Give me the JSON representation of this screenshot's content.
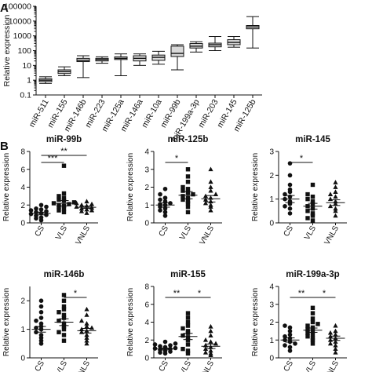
{
  "panels": {
    "a_label": "A",
    "b_label": "B"
  },
  "chart_data": [
    {
      "type": "box",
      "panel": "A",
      "title": "",
      "ylabel": "Relative expression",
      "yscale": "log",
      "ylim": [
        0.1,
        100000
      ],
      "yticks": [
        0.1,
        1,
        10,
        100,
        1000,
        10000,
        100000
      ],
      "ytick_labels": [
        "0.1",
        "1",
        "10",
        "100",
        "1000",
        "10000",
        "100000"
      ],
      "categories": [
        "miR-511",
        "miR-155",
        "miR-146b",
        "miR-223",
        "miR-125a",
        "miR-146a",
        "miR-10a",
        "miR-99b",
        "miR-199a-3p",
        "miR-203",
        "miR-145",
        "miR-125b"
      ],
      "boxes": [
        {
          "min": 0.6,
          "q1": 0.8,
          "median": 1.0,
          "q3": 1.25,
          "max": 1.7
        },
        {
          "min": 2.0,
          "q1": 2.8,
          "median": 3.8,
          "q3": 5,
          "max": 8
        },
        {
          "min": 1.5,
          "q1": 18,
          "median": 22,
          "q3": 30,
          "max": 45
        },
        {
          "min": 14,
          "q1": 20,
          "median": 25,
          "q3": 30,
          "max": 38
        },
        {
          "min": 2,
          "q1": 25,
          "median": 30,
          "q3": 38,
          "max": 60
        },
        {
          "min": 10,
          "q1": 20,
          "median": 30,
          "q3": 45,
          "max": 60
        },
        {
          "min": 12,
          "q1": 22,
          "median": 35,
          "q3": 50,
          "max": 90
        },
        {
          "min": 5,
          "q1": 40,
          "median": 65,
          "q3": 200,
          "max": 250
        },
        {
          "min": 80,
          "q1": 150,
          "median": 200,
          "q3": 300,
          "max": 400
        },
        {
          "min": 100,
          "q1": 180,
          "median": 250,
          "q3": 320,
          "max": 900
        },
        {
          "min": 170,
          "q1": 250,
          "median": 360,
          "q3": 550,
          "max": 900
        },
        {
          "min": 150,
          "q1": 3000,
          "median": 4000,
          "q3": 5000,
          "max": 20000
        }
      ]
    },
    {
      "type": "scatter",
      "panel": "B",
      "title": "miR-99b",
      "ylabel": "Relative expression",
      "categories": [
        "CS",
        "VLS",
        "VNLS"
      ],
      "ylim": [
        0,
        8
      ],
      "yticks": [
        0,
        2,
        4,
        6,
        8
      ],
      "ytick_labels": [
        "0",
        "2",
        "4",
        "6",
        "8"
      ],
      "markers": [
        "circle",
        "square",
        "triangle"
      ],
      "groups": [
        [
          0.3,
          0.5,
          0.6,
          0.8,
          0.9,
          1.0,
          1.1,
          1.2,
          1.3,
          1.4,
          1.5,
          1.6,
          1.8,
          2.0
        ],
        [
          1.2,
          1.4,
          1.6,
          1.8,
          1.9,
          2.0,
          2.1,
          2.2,
          2.3,
          2.5,
          2.6,
          2.8,
          3.0,
          3.3,
          6.4
        ],
        [
          1.1,
          1.3,
          1.4,
          1.5,
          1.6,
          1.7,
          1.8,
          1.9,
          2.0,
          2.1,
          2.2,
          2.4
        ]
      ],
      "means": [
        1.05,
        2.2,
        1.75
      ],
      "sems": [
        0.15,
        0.3,
        0.12
      ],
      "sig": [
        {
          "from": 0,
          "to": 1,
          "label": "***"
        },
        {
          "from": 0,
          "to": 2,
          "label": "**"
        }
      ]
    },
    {
      "type": "scatter",
      "panel": "B",
      "title": "miR-125b",
      "ylabel": "Relative expression",
      "categories": [
        "CS",
        "VLS",
        "VNLS"
      ],
      "ylim": [
        0,
        4
      ],
      "yticks": [
        0,
        1,
        2,
        3,
        4
      ],
      "ytick_labels": [
        "0",
        "1",
        "2",
        "3",
        "4"
      ],
      "markers": [
        "circle",
        "square",
        "triangle"
      ],
      "groups": [
        [
          0.4,
          0.6,
          0.7,
          0.8,
          0.9,
          1.0,
          1.05,
          1.1,
          1.2,
          1.3,
          1.4,
          1.6,
          1.9
        ],
        [
          0.6,
          0.9,
          1.1,
          1.2,
          1.3,
          1.4,
          1.5,
          1.6,
          1.7,
          1.8,
          1.9,
          2.0,
          2.3,
          2.6,
          3.0
        ],
        [
          0.7,
          0.9,
          1.0,
          1.1,
          1.2,
          1.3,
          1.4,
          1.5,
          1.6,
          1.8,
          2.0,
          2.3,
          3.0
        ]
      ],
      "means": [
        1.0,
        1.55,
        1.35
      ],
      "sems": [
        0.12,
        0.2,
        0.18
      ],
      "sig": [
        {
          "from": 0,
          "to": 1,
          "label": "*"
        }
      ]
    },
    {
      "type": "scatter",
      "panel": "B",
      "title": "miR-145",
      "ylabel": "Relative expression",
      "categories": [
        "CS",
        "VLS",
        "VNLS"
      ],
      "ylim": [
        0,
        3
      ],
      "yticks": [
        0,
        1,
        2,
        3
      ],
      "ytick_labels": [
        "0",
        "1",
        "2",
        "3"
      ],
      "markers": [
        "circle",
        "square",
        "triangle"
      ],
      "groups": [
        [
          0.4,
          0.6,
          0.7,
          0.8,
          0.9,
          1.0,
          1.1,
          1.2,
          1.3,
          1.4,
          1.6,
          2.0,
          2.5
        ],
        [
          0.1,
          0.2,
          0.3,
          0.4,
          0.5,
          0.6,
          0.7,
          0.8,
          0.9,
          1.0,
          1.1,
          1.2,
          1.6
        ],
        [
          0.3,
          0.5,
          0.6,
          0.7,
          0.8,
          0.9,
          1.0,
          1.1,
          1.2,
          1.3,
          1.5,
          1.7
        ]
      ],
      "means": [
        1.0,
        0.7,
        0.85
      ],
      "sems": [
        0.15,
        0.12,
        0.12
      ],
      "sig": [
        {
          "from": 0,
          "to": 1,
          "label": "*"
        }
      ]
    },
    {
      "type": "scatter",
      "panel": "B",
      "title": "miR-146b",
      "ylabel": "Relative expression",
      "categories": [
        "CS",
        "VLS",
        "VNLS"
      ],
      "ylim": [
        0,
        2.5
      ],
      "yticks": [
        0,
        1,
        2
      ],
      "ytick_labels": [
        "0",
        "1",
        "2"
      ],
      "markers": [
        "circle",
        "square",
        "triangle"
      ],
      "groups": [
        [
          0.5,
          0.6,
          0.7,
          0.8,
          0.9,
          1.0,
          1.05,
          1.1,
          1.2,
          1.3,
          1.4,
          1.6,
          1.8,
          2.0
        ],
        [
          0.6,
          0.8,
          0.9,
          1.0,
          1.1,
          1.2,
          1.3,
          1.4,
          1.5,
          1.6,
          1.7,
          1.8,
          2.0,
          2.2
        ],
        [
          0.5,
          0.6,
          0.7,
          0.8,
          0.9,
          0.95,
          1.0,
          1.05,
          1.1,
          1.2,
          1.3,
          1.5,
          1.7
        ]
      ],
      "means": [
        1.0,
        1.25,
        0.95
      ],
      "sems": [
        0.1,
        0.12,
        0.08
      ],
      "sig": [
        {
          "from": 1,
          "to": 2,
          "label": "*"
        }
      ]
    },
    {
      "type": "scatter",
      "panel": "B",
      "title": "miR-155",
      "ylabel": "Relative expression",
      "categories": [
        "CS",
        "VLS",
        "VNLS"
      ],
      "ylim": [
        0,
        8
      ],
      "yticks": [
        0,
        2,
        4,
        6,
        8
      ],
      "ytick_labels": [
        "0",
        "2",
        "4",
        "6",
        "8"
      ],
      "markers": [
        "circle",
        "square",
        "triangle"
      ],
      "groups": [
        [
          0.5,
          0.6,
          0.7,
          0.8,
          0.9,
          1.0,
          1.05,
          1.1,
          1.2,
          1.3,
          1.4,
          1.5,
          1.6,
          1.8
        ],
        [
          0.5,
          0.8,
          1.0,
          1.5,
          2.0,
          2.3,
          2.5,
          2.8,
          3.0,
          3.3,
          3.6,
          4.0,
          4.5,
          5.0
        ],
        [
          0.3,
          0.5,
          0.6,
          0.8,
          1.0,
          1.2,
          1.4,
          1.6,
          1.8,
          2.0,
          2.5,
          3.0,
          3.5
        ]
      ],
      "means": [
        1.0,
        2.4,
        1.3
      ],
      "sems": [
        0.1,
        0.35,
        0.25
      ],
      "sig": [
        {
          "from": 0,
          "to": 1,
          "label": "**"
        },
        {
          "from": 1,
          "to": 2,
          "label": "*"
        }
      ]
    },
    {
      "type": "scatter",
      "panel": "B",
      "title": "miR-199a-3p",
      "ylabel": "Relative expression",
      "categories": [
        "CS",
        "VLS",
        "VNLS"
      ],
      "ylim": [
        0,
        4
      ],
      "yticks": [
        0,
        1,
        2,
        3,
        4
      ],
      "ytick_labels": [
        "0",
        "1",
        "2",
        "3",
        "4"
      ],
      "markers": [
        "circle",
        "square",
        "triangle"
      ],
      "groups": [
        [
          0.4,
          0.6,
          0.7,
          0.8,
          0.9,
          1.0,
          1.1,
          1.2,
          1.3,
          1.5,
          1.7,
          1.8
        ],
        [
          0.8,
          1.0,
          1.1,
          1.2,
          1.3,
          1.4,
          1.5,
          1.6,
          1.7,
          1.8,
          1.9,
          2.0,
          2.2,
          2.5,
          2.8
        ],
        [
          0.3,
          0.5,
          0.7,
          0.8,
          0.9,
          1.0,
          1.1,
          1.2,
          1.3,
          1.4,
          1.5,
          1.8
        ]
      ],
      "means": [
        1.0,
        1.55,
        1.1
      ],
      "sems": [
        0.12,
        0.12,
        0.12
      ],
      "sig": [
        {
          "from": 0,
          "to": 1,
          "label": "**"
        },
        {
          "from": 1,
          "to": 2,
          "label": "*"
        }
      ]
    }
  ]
}
